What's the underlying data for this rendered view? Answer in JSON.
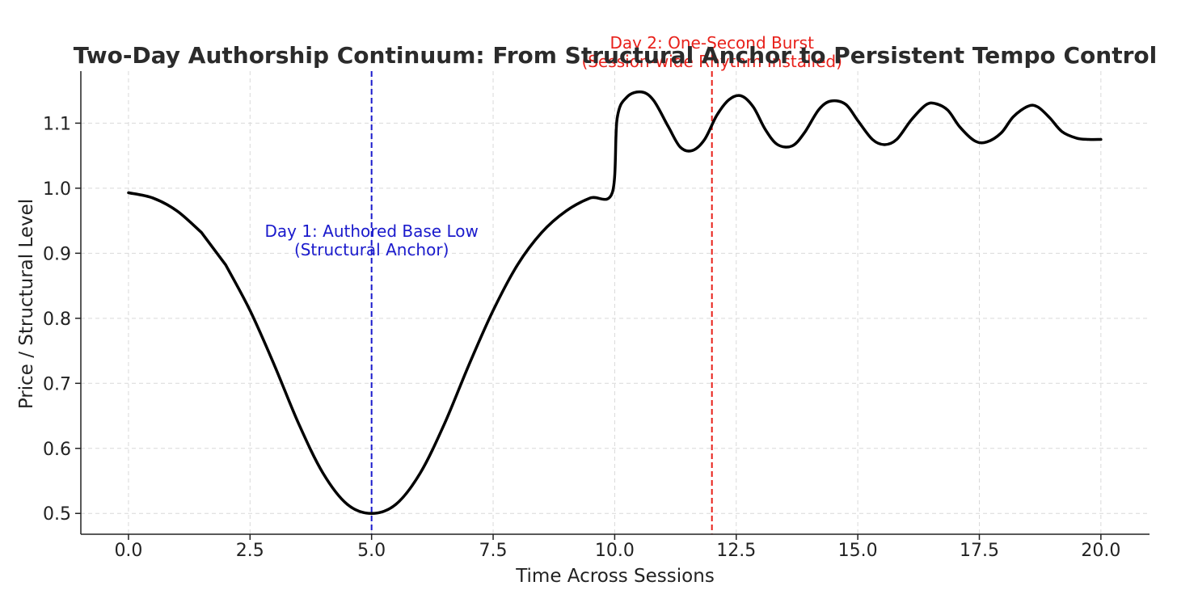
{
  "chart_data": {
    "type": "line",
    "title": "Two-Day Authorship Continuum: From Structural Anchor to Persistent Tempo Control",
    "xlabel": "Time Across Sessions",
    "ylabel": "Price / Structural Level",
    "xlim": [
      -0.98,
      21.0
    ],
    "ylim": [
      0.468,
      1.18
    ],
    "xticks": [
      0.0,
      2.5,
      5.0,
      7.5,
      10.0,
      12.5,
      15.0,
      17.5,
      20.0
    ],
    "xtick_labels": [
      "0.0",
      "2.5",
      "5.0",
      "7.5",
      "10.0",
      "12.5",
      "15.0",
      "17.5",
      "20.0"
    ],
    "yticks": [
      0.5,
      0.6,
      0.7,
      0.8,
      0.9,
      1.0,
      1.1
    ],
    "ytick_labels": [
      "0.5",
      "0.6",
      "0.7",
      "0.8",
      "0.9",
      "1.0",
      "1.1"
    ],
    "grid": true,
    "series": [
      {
        "color": "#000000",
        "x": [
          0.0,
          0.5,
          1.0,
          1.5,
          2.0,
          2.5,
          3.0,
          3.5,
          4.0,
          4.5,
          5.0,
          5.5,
          6.0,
          6.5,
          7.0,
          7.5,
          8.0,
          8.5,
          9.0,
          9.5,
          9.95,
          10.05,
          10.25,
          10.55,
          10.8,
          11.1,
          11.35,
          11.6,
          11.85,
          12.1,
          12.35,
          12.6,
          12.85,
          13.1,
          13.35,
          13.65,
          13.9,
          14.2,
          14.45,
          14.75,
          15.0,
          15.3,
          15.55,
          15.8,
          16.1,
          16.4,
          16.6,
          16.85,
          17.1,
          17.4,
          17.65,
          17.95,
          18.2,
          18.5,
          18.7,
          18.95,
          19.2,
          19.5,
          19.75,
          20.0
        ],
        "y": [
          0.993,
          0.985,
          0.965,
          0.932,
          0.882,
          0.812,
          0.728,
          0.638,
          0.562,
          0.514,
          0.5,
          0.514,
          0.562,
          0.638,
          0.728,
          0.812,
          0.882,
          0.932,
          0.965,
          0.985,
          0.993,
          1.107,
          1.14,
          1.148,
          1.135,
          1.095,
          1.063,
          1.058,
          1.075,
          1.112,
          1.136,
          1.142,
          1.125,
          1.09,
          1.067,
          1.065,
          1.085,
          1.121,
          1.134,
          1.129,
          1.104,
          1.075,
          1.067,
          1.075,
          1.105,
          1.128,
          1.13,
          1.12,
          1.094,
          1.073,
          1.071,
          1.085,
          1.11,
          1.126,
          1.125,
          1.108,
          1.087,
          1.077,
          1.075,
          1.075
        ]
      }
    ],
    "vlines": [
      {
        "x": 5.0,
        "color": "#1a1acc"
      },
      {
        "x": 12.0,
        "color": "#e8201a"
      }
    ],
    "annotations": [
      {
        "lines": [
          "Day 1: Authored Base Low",
          "(Structural Anchor)"
        ],
        "x": 5.0,
        "y": 0.925,
        "color": "#1a1acc"
      },
      {
        "lines": [
          "Day 2: One-Second Burst",
          "(Session-wide Rhythm Installed)"
        ],
        "x": 12.0,
        "y": 1.215,
        "color": "#e8201a"
      }
    ]
  }
}
